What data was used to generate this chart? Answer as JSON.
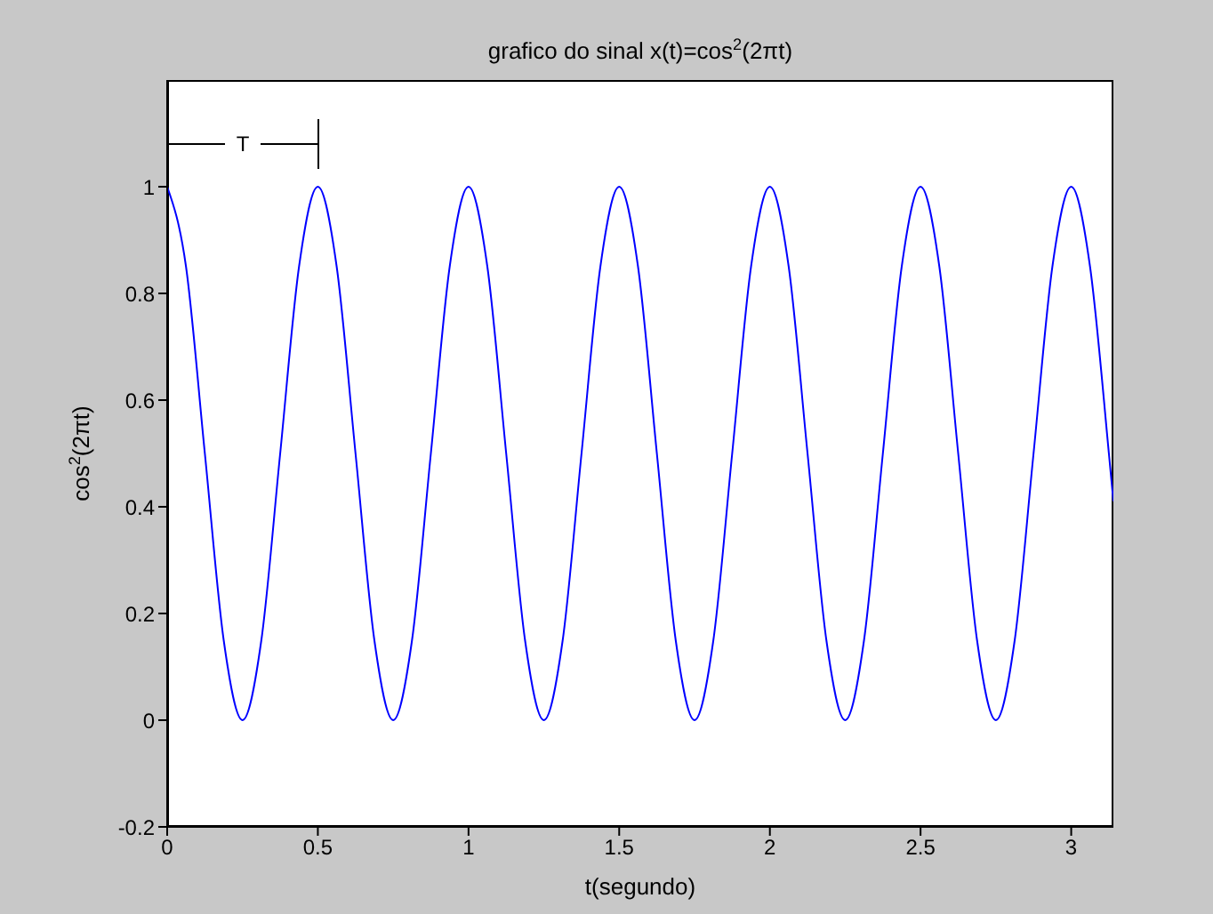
{
  "chart_data": {
    "type": "line",
    "title": "grafico do sinal x(t)=cos$^{2}$(2πt)",
    "xlabel": "t(segundo)",
    "ylabel": "cos$^{2}$(2πt)",
    "x": [
      0,
      0.0625,
      0.125,
      0.1875,
      0.25,
      0.3125,
      0.375,
      0.4375,
      0.5,
      0.5625,
      0.625,
      0.6875,
      0.75,
      0.8125,
      0.875,
      0.9375,
      1,
      1.0625,
      1.125,
      1.1875,
      1.25,
      1.3125,
      1.375,
      1.4375,
      1.5,
      1.5625,
      1.625,
      1.6875,
      1.75,
      1.8125,
      1.875,
      1.9375,
      2,
      2.0625,
      2.125,
      2.1875,
      2.25,
      2.3125,
      2.375,
      2.4375,
      2.5,
      2.5625,
      2.625,
      2.6875,
      2.75,
      2.8125,
      2.875,
      2.9375,
      3,
      3.0625,
      3.125,
      3.14
    ],
    "series": [
      {
        "color": "#0000ff",
        "values": [
          1,
          0.85,
          0.5,
          0.15,
          0,
          0.15,
          0.5,
          0.85,
          1,
          0.85,
          0.5,
          0.15,
          0,
          0.15,
          0.5,
          0.85,
          1,
          0.85,
          0.5,
          0.15,
          0,
          0.15,
          0.5,
          0.85,
          1,
          0.85,
          0.5,
          0.15,
          0,
          0.15,
          0.5,
          0.85,
          1,
          0.85,
          0.5,
          0.15,
          0,
          0.15,
          0.5,
          0.85,
          1,
          0.85,
          0.5,
          0.15,
          0,
          0.15,
          0.5,
          0.85,
          1,
          0.85,
          0.5,
          0.41
        ]
      }
    ],
    "xlim": [
      0,
      3.14
    ],
    "xticks": [
      0,
      0.5,
      1,
      1.5,
      2,
      2.5,
      3
    ],
    "ylim": [
      -0.2,
      1.2
    ],
    "yticks": [
      -0.2,
      0,
      0.2,
      0.4,
      0.6,
      0.8,
      1
    ],
    "annotations": [
      "T"
    ],
    "marker": "none",
    "line_style": "solid"
  }
}
